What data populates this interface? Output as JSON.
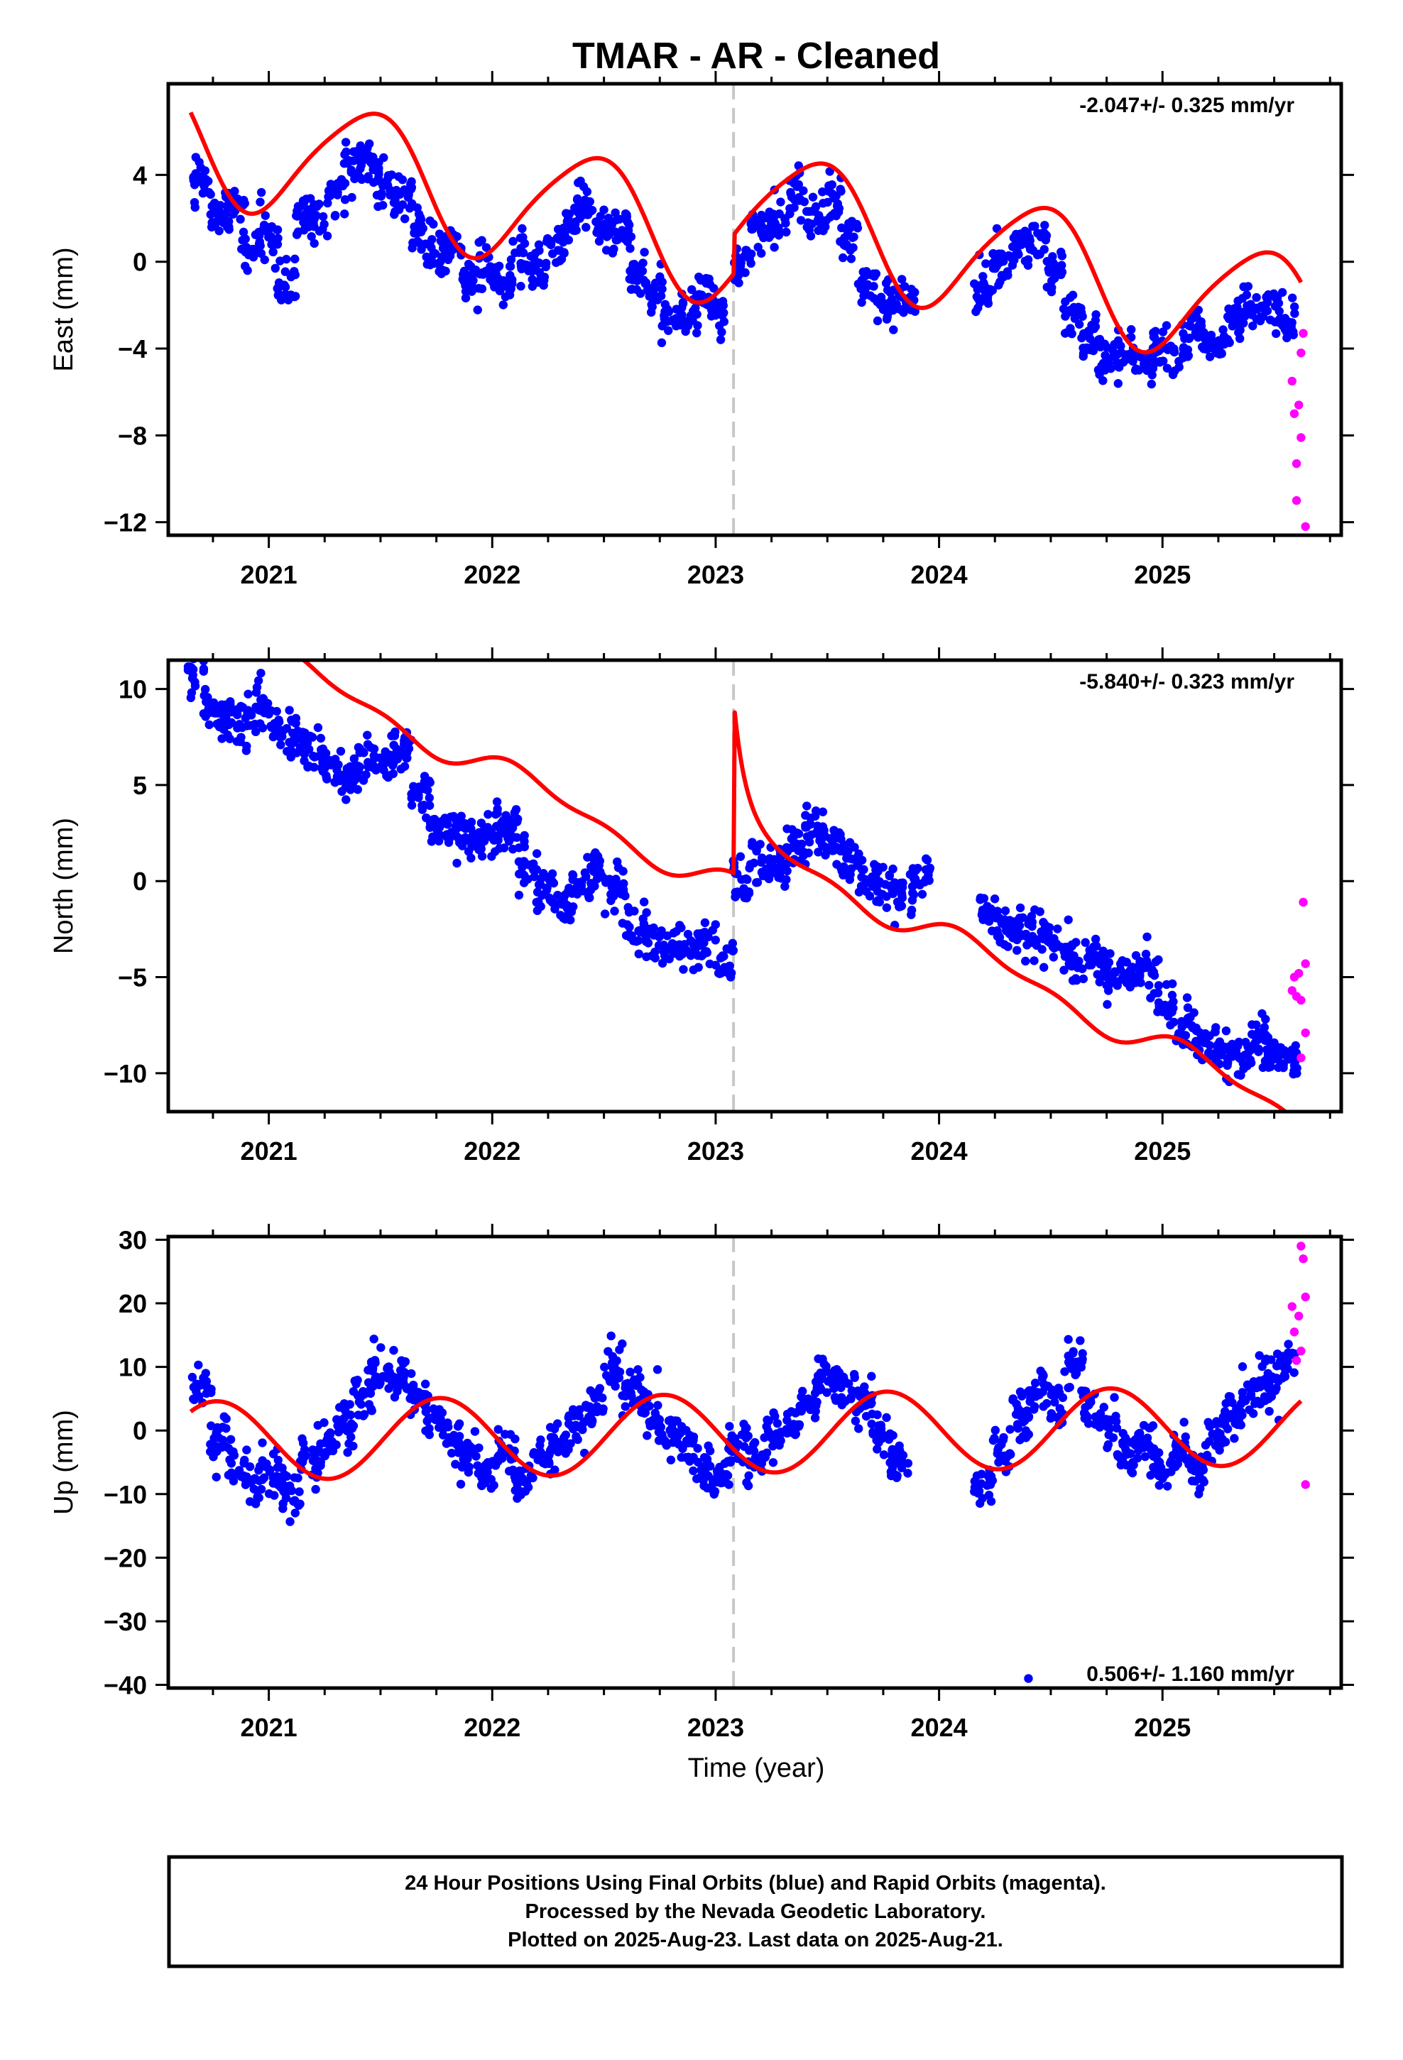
{
  "title": "TMAR  - AR - Cleaned",
  "xlabel": "Time (year)",
  "footer": {
    "line1": "24 Hour Positions Using Final Orbits (blue) and Rapid Orbits (magenta).",
    "line2": "Processed by the Nevada Geodetic Laboratory.",
    "line3": "Plotted on 2025-Aug-23. Last data on 2025-Aug-21."
  },
  "colors": {
    "final": "#0000ff",
    "rapid": "#ff00ff",
    "model": "#ff0000",
    "event": "#c8c8c8"
  },
  "chart_data": [
    {
      "type": "scatter",
      "name": "east",
      "ylabel": "East (mm)",
      "rate": "-2.047+/- 0.325 mm/yr",
      "xlim": [
        2020.55,
        2025.8
      ],
      "ylim": [
        -12.6,
        8.2
      ],
      "yticks": [
        -12,
        -8,
        -4,
        0,
        4
      ],
      "xticks": [
        2021,
        2022,
        2023,
        2024,
        2025
      ],
      "event_lines": [
        2023.08
      ],
      "model": {
        "offset": 1.0,
        "rate": -2.047,
        "annual_cos": -2.6,
        "annual_sin": 1.0,
        "semi_cos": 0.1,
        "semi_sin": 0.4,
        "step_year": 2023.08,
        "step_size": 1.8,
        "x_start": 2020.65,
        "x_end": 2025.62
      },
      "final_points": [
        [
          2020.7,
          3.8
        ],
        [
          2020.78,
          2.3
        ],
        [
          2020.85,
          2.5
        ],
        [
          2020.92,
          0.5
        ],
        [
          2021.0,
          1.5
        ],
        [
          2021.08,
          -0.8
        ],
        [
          2021.15,
          2.0
        ],
        [
          2021.22,
          1.8
        ],
        [
          2021.3,
          3.2
        ],
        [
          2021.38,
          4.7
        ],
        [
          2021.45,
          4.5
        ],
        [
          2021.52,
          3.6
        ],
        [
          2021.6,
          3.0
        ],
        [
          2021.68,
          1.4
        ],
        [
          2021.75,
          0.2
        ],
        [
          2021.82,
          0.5
        ],
        [
          2021.9,
          -0.8
        ],
        [
          2021.98,
          -0.2
        ],
        [
          2022.05,
          -1.0
        ],
        [
          2022.12,
          0.3
        ],
        [
          2022.2,
          -0.3
        ],
        [
          2022.28,
          0.8
        ],
        [
          2022.35,
          1.6
        ],
        [
          2022.42,
          2.4
        ],
        [
          2022.5,
          1.3
        ],
        [
          2022.58,
          1.6
        ],
        [
          2022.65,
          -0.8
        ],
        [
          2022.72,
          -1.5
        ],
        [
          2022.8,
          -2.6
        ],
        [
          2022.88,
          -2.2
        ],
        [
          2022.95,
          -1.6
        ],
        [
          2023.02,
          -2.1
        ],
        [
          2023.12,
          -0.1
        ],
        [
          2023.2,
          1.4
        ],
        [
          2023.28,
          1.8
        ],
        [
          2023.36,
          3.0
        ],
        [
          2023.45,
          2.2
        ],
        [
          2023.52,
          2.8
        ],
        [
          2023.6,
          1.0
        ],
        [
          2023.68,
          -0.8
        ],
        [
          2023.76,
          -2.0
        ],
        [
          2023.85,
          -1.6
        ],
        [
          2024.2,
          -1.2
        ],
        [
          2024.28,
          -0.1
        ],
        [
          2024.36,
          0.8
        ],
        [
          2024.44,
          1.0
        ],
        [
          2024.52,
          -0.5
        ],
        [
          2024.6,
          -2.4
        ],
        [
          2024.68,
          -3.4
        ],
        [
          2024.76,
          -4.6
        ],
        [
          2024.84,
          -4.3
        ],
        [
          2024.92,
          -4.7
        ],
        [
          2025.0,
          -3.9
        ],
        [
          2025.08,
          -4.4
        ],
        [
          2025.16,
          -3.2
        ],
        [
          2025.24,
          -3.8
        ],
        [
          2025.32,
          -2.9
        ],
        [
          2025.4,
          -2.1
        ],
        [
          2025.48,
          -1.8
        ],
        [
          2025.55,
          -2.8
        ]
      ],
      "rapid_points": [
        [
          2025.58,
          -5.5
        ],
        [
          2025.59,
          -7.0
        ],
        [
          2025.6,
          -9.3
        ],
        [
          2025.6,
          -11.0
        ],
        [
          2025.61,
          -6.6
        ],
        [
          2025.62,
          -4.2
        ],
        [
          2025.62,
          -8.1
        ],
        [
          2025.63,
          -3.3
        ],
        [
          2025.64,
          -12.2
        ]
      ]
    },
    {
      "type": "scatter",
      "name": "north",
      "ylabel": "North (mm)",
      "rate": "-5.840+/- 0.323 mm/yr",
      "xlim": [
        2020.55,
        2025.8
      ],
      "ylim": [
        -12.0,
        11.5
      ],
      "yticks": [
        -10,
        -5,
        0,
        5,
        10
      ],
      "xticks": [
        2021,
        2022,
        2023,
        2024,
        2025
      ],
      "event_lines": [
        2023.08
      ],
      "model": {
        "offset": 0.0,
        "rate": -5.84,
        "annual_cos": 0.3,
        "annual_sin": 0.6,
        "semi_cos": 0.3,
        "semi_sin": 0.2,
        "step_year": 2023.08,
        "step_size": 9.0,
        "decay": 6.0,
        "decay_tau": 0.05,
        "x_start": 2020.65,
        "x_end": 2025.62
      },
      "final_points": [
        [
          2020.68,
          11.1
        ],
        [
          2020.75,
          8.8
        ],
        [
          2020.82,
          8.6
        ],
        [
          2020.9,
          8.4
        ],
        [
          2020.98,
          9.5
        ],
        [
          2021.05,
          8.1
        ],
        [
          2021.12,
          7.6
        ],
        [
          2021.2,
          6.8
        ],
        [
          2021.28,
          5.7
        ],
        [
          2021.36,
          5.6
        ],
        [
          2021.44,
          6.2
        ],
        [
          2021.52,
          6.4
        ],
        [
          2021.6,
          6.7
        ],
        [
          2021.68,
          4.6
        ],
        [
          2021.76,
          3.0
        ],
        [
          2021.84,
          2.6
        ],
        [
          2021.92,
          2.1
        ],
        [
          2022.0,
          2.7
        ],
        [
          2022.08,
          2.6
        ],
        [
          2022.16,
          0.8
        ],
        [
          2022.24,
          -0.5
        ],
        [
          2022.32,
          -0.9
        ],
        [
          2022.4,
          -0.2
        ],
        [
          2022.48,
          0.6
        ],
        [
          2022.56,
          -0.5
        ],
        [
          2022.64,
          -2.5
        ],
        [
          2022.72,
          -3.0
        ],
        [
          2022.8,
          -3.4
        ],
        [
          2022.88,
          -3.5
        ],
        [
          2022.96,
          -3.1
        ],
        [
          2023.04,
          -4.1
        ],
        [
          2023.12,
          0.1
        ],
        [
          2023.2,
          1.0
        ],
        [
          2023.28,
          0.8
        ],
        [
          2023.36,
          2.0
        ],
        [
          2023.44,
          2.5
        ],
        [
          2023.52,
          2.0
        ],
        [
          2023.6,
          1.0
        ],
        [
          2023.68,
          0.1
        ],
        [
          2023.76,
          -0.2
        ],
        [
          2023.84,
          -0.6
        ],
        [
          2023.92,
          0.4
        ],
        [
          2024.22,
          -2.0
        ],
        [
          2024.3,
          -2.6
        ],
        [
          2024.38,
          -2.5
        ],
        [
          2024.46,
          -3.0
        ],
        [
          2024.54,
          -3.3
        ],
        [
          2024.62,
          -4.1
        ],
        [
          2024.7,
          -4.2
        ],
        [
          2024.78,
          -5.0
        ],
        [
          2024.86,
          -4.8
        ],
        [
          2024.94,
          -4.6
        ],
        [
          2025.02,
          -6.4
        ],
        [
          2025.1,
          -7.6
        ],
        [
          2025.18,
          -8.6
        ],
        [
          2025.26,
          -9.0
        ],
        [
          2025.34,
          -9.0
        ],
        [
          2025.42,
          -8.4
        ],
        [
          2025.5,
          -8.8
        ],
        [
          2025.56,
          -9.1
        ]
      ],
      "rapid_points": [
        [
          2025.58,
          -5.7
        ],
        [
          2025.59,
          -5.0
        ],
        [
          2025.6,
          -6.0
        ],
        [
          2025.61,
          -4.8
        ],
        [
          2025.62,
          -9.2
        ],
        [
          2025.62,
          -6.2
        ],
        [
          2025.63,
          -1.1
        ],
        [
          2025.64,
          -4.3
        ],
        [
          2025.64,
          -7.9
        ]
      ]
    },
    {
      "type": "scatter",
      "name": "up",
      "ylabel": "Up (mm)",
      "rate": "0.506+/- 1.160 mm/yr",
      "xlim": [
        2020.55,
        2025.8
      ],
      "ylim": [
        -40.5,
        30.5
      ],
      "yticks": [
        -40,
        -30,
        -20,
        -10,
        0,
        10,
        20,
        30
      ],
      "xticks": [
        2021,
        2022,
        2023,
        2024,
        2025
      ],
      "event_lines": [
        2023.08
      ],
      "model": {
        "offset": -0.5,
        "rate": 0.506,
        "annual_cos": 0.6,
        "annual_sin": -6.2,
        "semi_cos": 0.0,
        "semi_sin": 0.0,
        "step_year": 2023.08,
        "step_size": 0.0,
        "x_start": 2020.65,
        "x_end": 2025.62
      },
      "final_points": [
        [
          2020.7,
          6.5
        ],
        [
          2020.78,
          -1.0
        ],
        [
          2020.86,
          -5.5
        ],
        [
          2020.94,
          -8.0
        ],
        [
          2021.02,
          -7.2
        ],
        [
          2021.1,
          -9.5
        ],
        [
          2021.18,
          -4.5
        ],
        [
          2021.26,
          -2.0
        ],
        [
          2021.34,
          0.6
        ],
        [
          2021.42,
          4.8
        ],
        [
          2021.5,
          9.0
        ],
        [
          2021.58,
          7.5
        ],
        [
          2021.66,
          5.8
        ],
        [
          2021.74,
          2.1
        ],
        [
          2021.82,
          -1.5
        ],
        [
          2021.9,
          -4.0
        ],
        [
          2021.98,
          -6.5
        ],
        [
          2022.06,
          -3.0
        ],
        [
          2022.14,
          -8.6
        ],
        [
          2022.22,
          -4.5
        ],
        [
          2022.3,
          -3.0
        ],
        [
          2022.38,
          0.6
        ],
        [
          2022.46,
          4.3
        ],
        [
          2022.54,
          10.2
        ],
        [
          2022.62,
          6.8
        ],
        [
          2022.7,
          4.0
        ],
        [
          2022.78,
          -0.1
        ],
        [
          2022.86,
          -1.7
        ],
        [
          2022.94,
          -5.5
        ],
        [
          2023.02,
          -7.1
        ],
        [
          2023.1,
          -2.0
        ],
        [
          2023.18,
          -5.0
        ],
        [
          2023.26,
          -1.2
        ],
        [
          2023.34,
          0.8
        ],
        [
          2023.42,
          4.6
        ],
        [
          2023.5,
          8.3
        ],
        [
          2023.58,
          7.0
        ],
        [
          2023.66,
          4.5
        ],
        [
          2023.74,
          0.2
        ],
        [
          2023.82,
          -4.5
        ],
        [
          2024.2,
          -9.0
        ],
        [
          2024.28,
          -4.2
        ],
        [
          2024.36,
          1.5
        ],
        [
          2024.44,
          6.8
        ],
        [
          2024.52,
          3.2
        ],
        [
          2024.6,
          10.5
        ],
        [
          2024.68,
          4.0
        ],
        [
          2024.76,
          1.2
        ],
        [
          2024.84,
          -3.8
        ],
        [
          2024.92,
          -1.6
        ],
        [
          2025.0,
          -6.0
        ],
        [
          2025.08,
          -3.5
        ],
        [
          2025.16,
          -5.5
        ],
        [
          2025.24,
          -1.0
        ],
        [
          2025.32,
          2.5
        ],
        [
          2025.4,
          5.8
        ],
        [
          2025.48,
          6.8
        ],
        [
          2025.55,
          9.5
        ],
        [
          2024.4,
          -39.0
        ]
      ],
      "rapid_points": [
        [
          2025.58,
          19.5
        ],
        [
          2025.59,
          15.5
        ],
        [
          2025.6,
          11.0
        ],
        [
          2025.61,
          18.0
        ],
        [
          2025.62,
          29.0
        ],
        [
          2025.62,
          12.5
        ],
        [
          2025.63,
          27.0
        ],
        [
          2025.64,
          21.0
        ],
        [
          2025.64,
          -8.5
        ]
      ]
    }
  ]
}
